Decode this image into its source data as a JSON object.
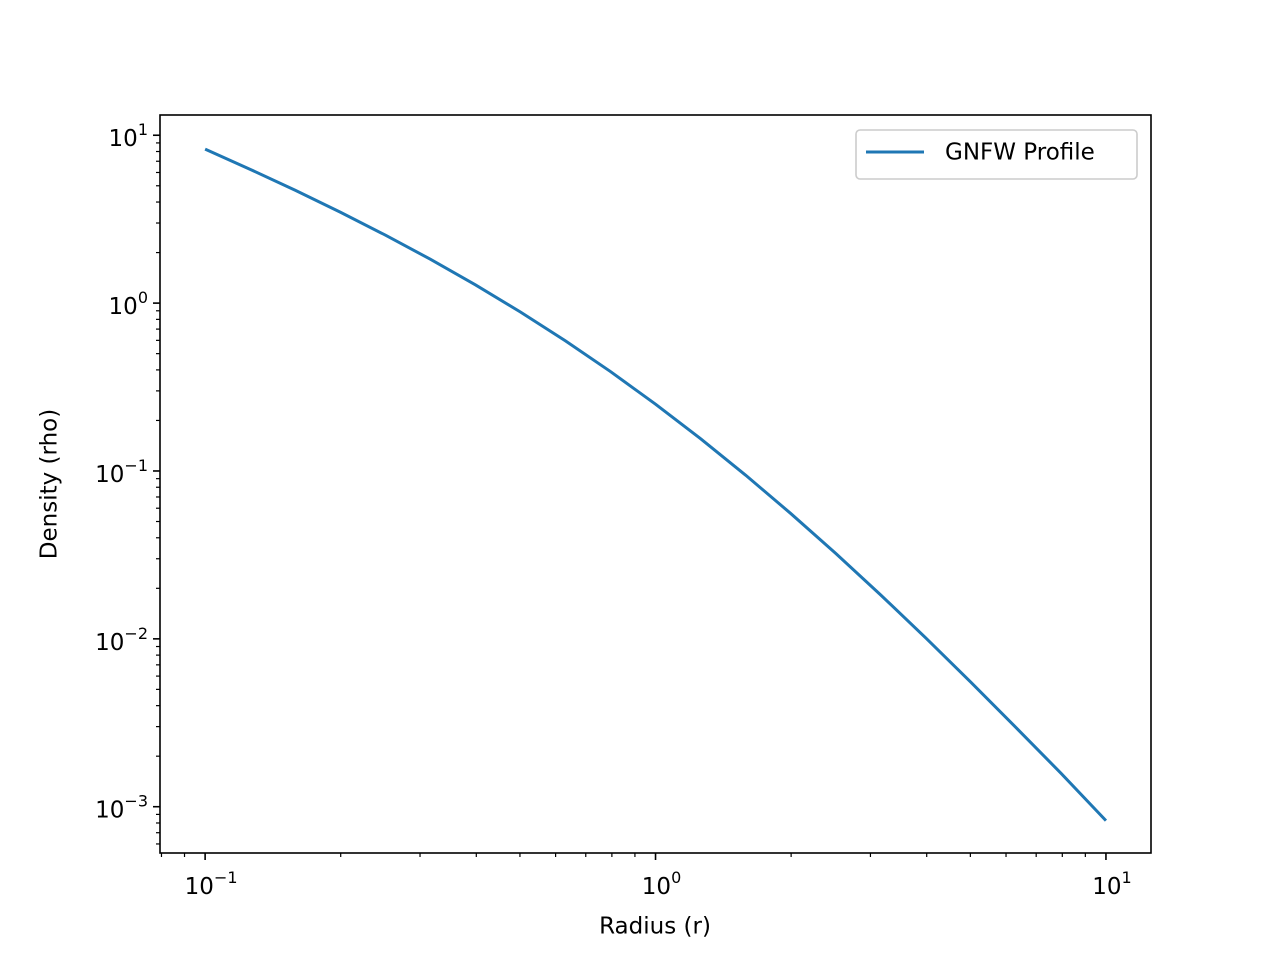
{
  "chart_data": {
    "type": "line",
    "xlabel": "Radius (r)",
    "ylabel": "Density (rho)",
    "xscale": "log",
    "yscale": "log",
    "x": [
      0.1,
      0.1259,
      0.1585,
      0.1995,
      0.2512,
      0.3162,
      0.3981,
      0.5012,
      0.631,
      0.7943,
      1,
      1.2589,
      1.5849,
      1.9953,
      2.5119,
      3.1623,
      3.9811,
      5.0119,
      6.3096,
      7.9433,
      10
    ],
    "series": [
      {
        "name": "GNFW Profile",
        "color": "#1f77b4",
        "values": [
          8.264,
          6.266,
          4.701,
          3.484,
          2.543,
          1.826,
          1.285,
          0.8853,
          0.5957,
          0.391,
          0.25,
          0.15567,
          0.09443,
          0.05586,
          0.03228,
          0.018253,
          0.010124,
          0.00552,
          0.002966,
          0.001584,
          0.000826
        ]
      }
    ],
    "xlim": [
      0.0794,
      12.59
    ],
    "ylim": [
      0.00053,
      13.2
    ],
    "xticks": [
      {
        "value": 0.1,
        "label": "10",
        "exponent": "−1"
      },
      {
        "value": 1,
        "label": "10",
        "exponent": "0"
      },
      {
        "value": 10,
        "label": "10",
        "exponent": "1"
      }
    ],
    "yticks": [
      {
        "value": 0.001,
        "label": "10",
        "exponent": "−3"
      },
      {
        "value": 0.01,
        "label": "10",
        "exponent": "−2"
      },
      {
        "value": 0.1,
        "label": "10",
        "exponent": "−1"
      },
      {
        "value": 1,
        "label": "10",
        "exponent": "0"
      },
      {
        "value": 10,
        "label": "10",
        "exponent": "1"
      }
    ],
    "xminorticks": [
      0.08,
      0.09,
      0.2,
      0.3,
      0.4,
      0.5,
      0.6,
      0.7,
      0.8,
      0.9,
      2,
      3,
      4,
      5,
      6,
      7,
      8,
      9
    ],
    "yminorticks": [
      0.0006,
      0.0007,
      0.0008,
      0.0009,
      0.002,
      0.003,
      0.004,
      0.005,
      0.006,
      0.007,
      0.008,
      0.009,
      0.02,
      0.03,
      0.04,
      0.05,
      0.06,
      0.07,
      0.08,
      0.09,
      0.2,
      0.3,
      0.4,
      0.5,
      0.6,
      0.7,
      0.8,
      0.9,
      2,
      3,
      4,
      5,
      6,
      7,
      8,
      9
    ],
    "legend": "upper right",
    "grid": false
  }
}
